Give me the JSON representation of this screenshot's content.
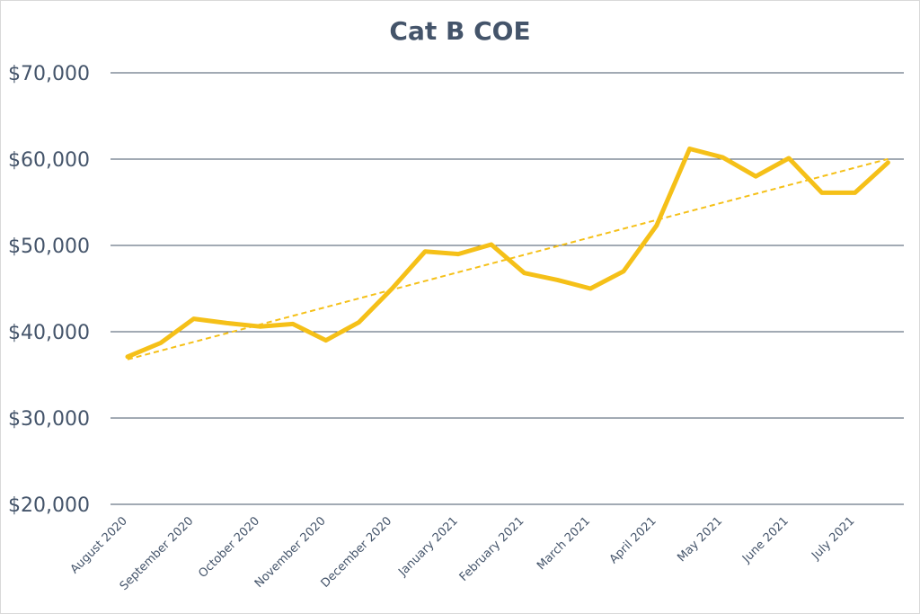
{
  "chart_data": {
    "type": "line",
    "title": "Cat B COE",
    "xlabel": "",
    "ylabel": "",
    "ylim": [
      20000,
      70000
    ],
    "yticks": [
      20000,
      30000,
      40000,
      50000,
      60000,
      70000
    ],
    "ytick_labels": [
      "$20,000",
      "$30,000",
      "$40,000",
      "$50,000",
      "$60,000",
      "$70,000"
    ],
    "grid": true,
    "legend": "none",
    "x_tick_labels": [
      "August 2020",
      "September 2020",
      "October 2020",
      "November 2020",
      "December 2020",
      "January 2021",
      "February 2021",
      "March 2021",
      "April 2021",
      "May 2021",
      "June 2021",
      "July 2021"
    ],
    "series": [
      {
        "color": "#f5c018",
        "values": [
          37100,
          38700,
          41500,
          41000,
          40600,
          40900,
          39000,
          41100,
          45000,
          49300,
          49000,
          50100,
          46800,
          46000,
          45000,
          47000,
          52300,
          61200,
          60200,
          58000,
          60100,
          56100,
          56100,
          59600
        ]
      }
    ],
    "trendline": {
      "type": "linear",
      "style": "dashed",
      "color": "#f5c018"
    },
    "colors": {
      "line": "#f5c018",
      "grid": "#44546a",
      "text": "#44546a",
      "border": "#d9d9d9"
    }
  }
}
